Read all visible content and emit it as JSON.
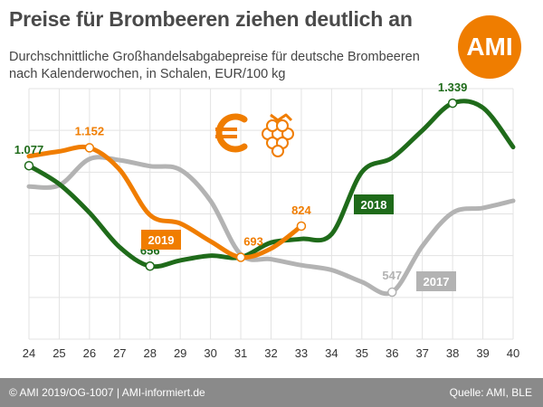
{
  "header": {
    "title": "Preise für Brombeeren ziehen deutlich an",
    "subtitle": "Durchschnittliche Großhandelsabgabepreise für deutsche Brombeeren nach Kalenderwochen, in Schalen, EUR/100 kg",
    "logo": "AMI"
  },
  "icons": [
    "euro-icon",
    "blackberry-icon"
  ],
  "footer": {
    "copyright": "© AMI 2019/OG-1007 | AMI-informiert.de",
    "source": "Quelle: AMI, BLE"
  },
  "colors": {
    "s2017": "#b3b3b3",
    "s2018": "#1f6b1a",
    "s2019": "#f07d00",
    "logo": "#ef7d00",
    "footer": "#8a8a8a",
    "grid": "#e3e3e3"
  },
  "chart_data": {
    "type": "line",
    "title": "Preise für Brombeeren ziehen deutlich an",
    "x_ticks": [
      24,
      25,
      26,
      27,
      28,
      29,
      30,
      31,
      32,
      33,
      34,
      35,
      36,
      37,
      38,
      39,
      40
    ],
    "xlim": [
      24,
      40
    ],
    "ylim": [
      350,
      1400
    ],
    "grid": true,
    "legend": "inline labels",
    "series": [
      {
        "name": "2017",
        "color": "#b3b3b3",
        "points": [
          [
            24,
            990
          ],
          [
            25,
            995
          ],
          [
            26,
            1105
          ],
          [
            27,
            1100
          ],
          [
            28,
            1075
          ],
          [
            29,
            1060
          ],
          [
            30,
            930
          ],
          [
            31,
            705
          ],
          [
            32,
            685
          ],
          [
            33,
            660
          ],
          [
            34,
            640
          ],
          [
            35,
            590
          ],
          [
            36,
            547
          ],
          [
            37,
            740
          ],
          [
            38,
            880
          ],
          [
            39,
            900
          ],
          [
            40,
            930
          ]
        ]
      },
      {
        "name": "2018",
        "color": "#1f6b1a",
        "points": [
          [
            24,
            1077
          ],
          [
            25,
            1000
          ],
          [
            26,
            880
          ],
          [
            27,
            735
          ],
          [
            28,
            656
          ],
          [
            29,
            680
          ],
          [
            30,
            700
          ],
          [
            31,
            693
          ],
          [
            32,
            755
          ],
          [
            33,
            770
          ],
          [
            34,
            790
          ],
          [
            35,
            1050
          ],
          [
            36,
            1110
          ],
          [
            37,
            1225
          ],
          [
            38,
            1339
          ],
          [
            39,
            1320
          ],
          [
            40,
            1155
          ]
        ]
      },
      {
        "name": "2019",
        "color": "#f07d00",
        "points": [
          [
            24,
            1117
          ],
          [
            25,
            1137
          ],
          [
            26,
            1152
          ],
          [
            27,
            1060
          ],
          [
            28,
            870
          ],
          [
            29,
            835
          ],
          [
            30,
            760
          ],
          [
            31,
            693
          ],
          [
            32,
            730
          ],
          [
            33,
            824
          ]
        ]
      }
    ],
    "data_labels": [
      {
        "series": "2018",
        "x": 24,
        "text": "1.077"
      },
      {
        "series": "2019",
        "x": 26,
        "text": "1.152"
      },
      {
        "series": "2018",
        "x": 28,
        "text": "656"
      },
      {
        "series": "2019",
        "x": 31,
        "text": "693"
      },
      {
        "series": "2019",
        "x": 33,
        "text": "824"
      },
      {
        "series": "2017",
        "x": 36,
        "text": "547"
      },
      {
        "series": "2018",
        "x": 38,
        "text": "1.339"
      }
    ],
    "series_labels": [
      {
        "series": "2019",
        "text": "2019"
      },
      {
        "series": "2018",
        "text": "2018"
      },
      {
        "series": "2017",
        "text": "2017"
      }
    ]
  }
}
